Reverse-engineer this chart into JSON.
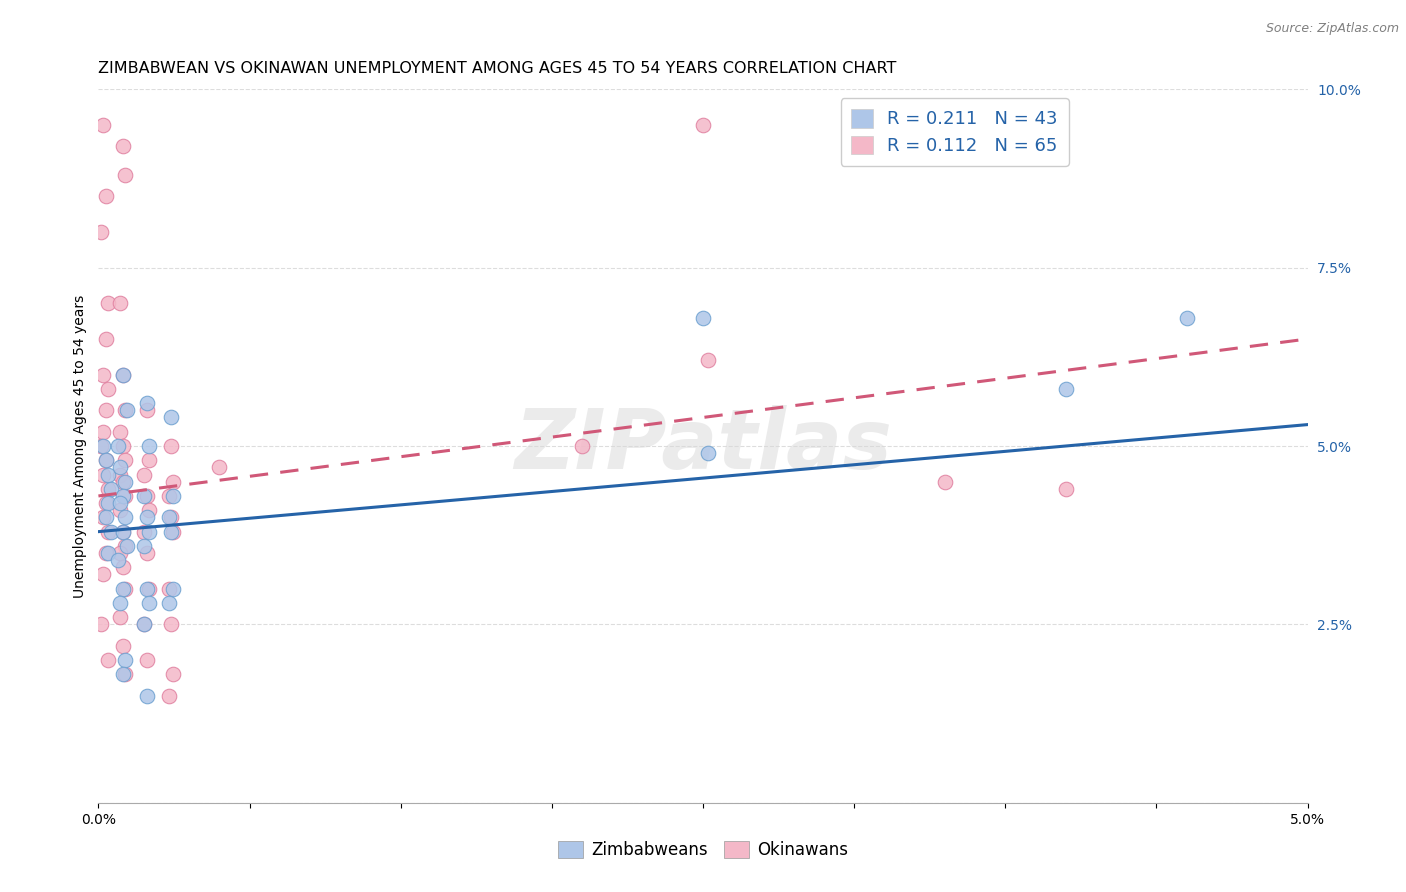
{
  "title": "ZIMBABWEAN VS OKINAWAN UNEMPLOYMENT AMONG AGES 45 TO 54 YEARS CORRELATION CHART",
  "source": "Source: ZipAtlas.com",
  "ylabel": "Unemployment Among Ages 45 to 54 years",
  "xlim": [
    0.0,
    0.05
  ],
  "ylim": [
    0.0,
    0.1
  ],
  "x_ticks": [
    0.0,
    0.00625,
    0.0125,
    0.01875,
    0.025,
    0.03125,
    0.0375,
    0.04375,
    0.05
  ],
  "x_tick_labels": [
    "0.0%",
    "",
    "",
    "",
    "",
    "",
    "",
    "",
    "5.0%"
  ],
  "y_ticks_right": [
    0.0,
    0.025,
    0.05,
    0.075,
    0.1
  ],
  "y_tick_labels_right": [
    "",
    "2.5%",
    "5.0%",
    "7.5%",
    "10.0%"
  ],
  "legend_entries": [
    {
      "label": "R = 0.211   N = 43",
      "color": "#aec6e8"
    },
    {
      "label": "R = 0.112   N = 65",
      "color": "#f4b8c8"
    }
  ],
  "legend_bottom": [
    {
      "label": "Zimbabweans",
      "color": "#aec6e8"
    },
    {
      "label": "Okinawans",
      "color": "#f4b8c8"
    }
  ],
  "zimbabwean_scatter": [
    [
      0.0002,
      0.05
    ],
    [
      0.0003,
      0.048
    ],
    [
      0.0004,
      0.046
    ],
    [
      0.0005,
      0.044
    ],
    [
      0.0004,
      0.042
    ],
    [
      0.0003,
      0.04
    ],
    [
      0.0005,
      0.038
    ],
    [
      0.0004,
      0.035
    ],
    [
      0.001,
      0.06
    ],
    [
      0.0012,
      0.055
    ],
    [
      0.0008,
      0.05
    ],
    [
      0.0009,
      0.047
    ],
    [
      0.0011,
      0.045
    ],
    [
      0.001,
      0.043
    ],
    [
      0.0009,
      0.042
    ],
    [
      0.0011,
      0.04
    ],
    [
      0.001,
      0.038
    ],
    [
      0.0012,
      0.036
    ],
    [
      0.0008,
      0.034
    ],
    [
      0.001,
      0.03
    ],
    [
      0.0009,
      0.028
    ],
    [
      0.0011,
      0.02
    ],
    [
      0.001,
      0.018
    ],
    [
      0.002,
      0.056
    ],
    [
      0.0021,
      0.05
    ],
    [
      0.0019,
      0.043
    ],
    [
      0.002,
      0.04
    ],
    [
      0.0021,
      0.038
    ],
    [
      0.0019,
      0.036
    ],
    [
      0.002,
      0.03
    ],
    [
      0.0021,
      0.028
    ],
    [
      0.0019,
      0.025
    ],
    [
      0.002,
      0.015
    ],
    [
      0.003,
      0.054
    ],
    [
      0.0031,
      0.043
    ],
    [
      0.0029,
      0.04
    ],
    [
      0.003,
      0.038
    ],
    [
      0.0031,
      0.03
    ],
    [
      0.0029,
      0.028
    ],
    [
      0.025,
      0.068
    ],
    [
      0.0252,
      0.049
    ],
    [
      0.045,
      0.068
    ],
    [
      0.04,
      0.058
    ]
  ],
  "okinawan_scatter": [
    [
      0.0002,
      0.095
    ],
    [
      0.0003,
      0.085
    ],
    [
      0.0001,
      0.08
    ],
    [
      0.0004,
      0.07
    ],
    [
      0.0003,
      0.065
    ],
    [
      0.0002,
      0.06
    ],
    [
      0.0004,
      0.058
    ],
    [
      0.0003,
      0.055
    ],
    [
      0.0002,
      0.052
    ],
    [
      0.0001,
      0.05
    ],
    [
      0.0003,
      0.048
    ],
    [
      0.0002,
      0.046
    ],
    [
      0.0004,
      0.044
    ],
    [
      0.0003,
      0.042
    ],
    [
      0.0002,
      0.04
    ],
    [
      0.0004,
      0.038
    ],
    [
      0.0003,
      0.035
    ],
    [
      0.0002,
      0.032
    ],
    [
      0.0001,
      0.025
    ],
    [
      0.0004,
      0.02
    ],
    [
      0.001,
      0.092
    ],
    [
      0.0011,
      0.088
    ],
    [
      0.0009,
      0.07
    ],
    [
      0.001,
      0.06
    ],
    [
      0.0011,
      0.055
    ],
    [
      0.0009,
      0.052
    ],
    [
      0.001,
      0.05
    ],
    [
      0.0011,
      0.048
    ],
    [
      0.0009,
      0.046
    ],
    [
      0.001,
      0.045
    ],
    [
      0.0011,
      0.043
    ],
    [
      0.0009,
      0.041
    ],
    [
      0.001,
      0.038
    ],
    [
      0.0011,
      0.036
    ],
    [
      0.0009,
      0.035
    ],
    [
      0.001,
      0.033
    ],
    [
      0.0011,
      0.03
    ],
    [
      0.0009,
      0.026
    ],
    [
      0.001,
      0.022
    ],
    [
      0.0011,
      0.018
    ],
    [
      0.002,
      0.055
    ],
    [
      0.0021,
      0.048
    ],
    [
      0.0019,
      0.046
    ],
    [
      0.002,
      0.043
    ],
    [
      0.0021,
      0.041
    ],
    [
      0.0019,
      0.038
    ],
    [
      0.002,
      0.035
    ],
    [
      0.0021,
      0.03
    ],
    [
      0.0019,
      0.025
    ],
    [
      0.002,
      0.02
    ],
    [
      0.003,
      0.05
    ],
    [
      0.0031,
      0.045
    ],
    [
      0.0029,
      0.043
    ],
    [
      0.003,
      0.04
    ],
    [
      0.0031,
      0.038
    ],
    [
      0.0029,
      0.03
    ],
    [
      0.003,
      0.025
    ],
    [
      0.0031,
      0.018
    ],
    [
      0.0029,
      0.015
    ],
    [
      0.025,
      0.095
    ],
    [
      0.0252,
      0.062
    ],
    [
      0.04,
      0.044
    ],
    [
      0.035,
      0.045
    ],
    [
      0.02,
      0.05
    ],
    [
      0.005,
      0.047
    ]
  ],
  "blue_line_x0": 0.0,
  "blue_line_x1": 0.05,
  "blue_line_y0": 0.038,
  "blue_line_y1": 0.053,
  "pink_line_x0": 0.0,
  "pink_line_x1": 0.05,
  "pink_line_y0": 0.043,
  "pink_line_y1": 0.065,
  "scatter_color_zimbabwean": "#aec6e8",
  "scatter_color_okinawan": "#f4b8c8",
  "scatter_edge_zimbabwean": "#6ca0d0",
  "scatter_edge_okinawan": "#e080a0",
  "blue_line_color": "#2563a8",
  "pink_line_color": "#d05878",
  "background_color": "#ffffff",
  "grid_color": "#dddddd",
  "watermark": "ZIPatlas",
  "title_fontsize": 11.5,
  "label_fontsize": 10,
  "tick_fontsize": 10,
  "legend_fontsize": 13,
  "source_fontsize": 9
}
